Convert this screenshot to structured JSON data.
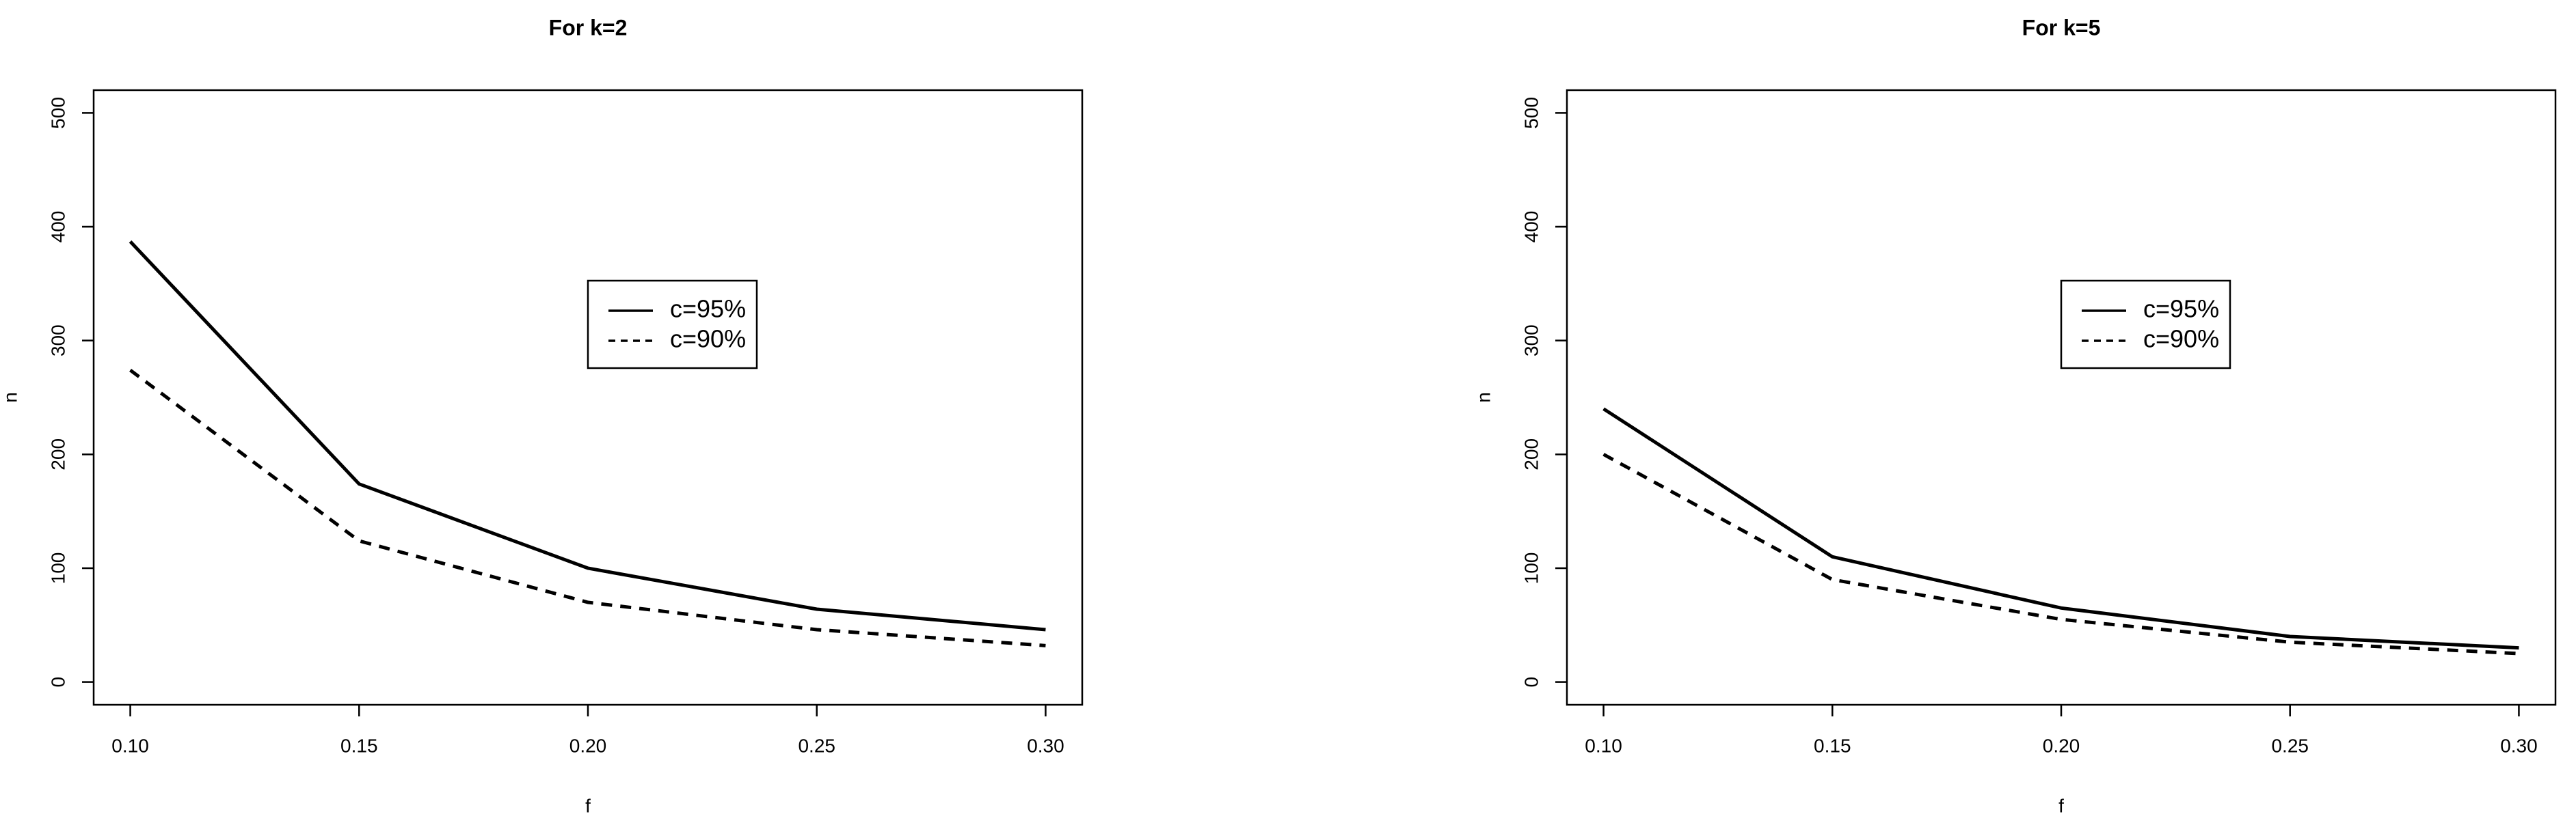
{
  "chart_data": [
    {
      "type": "line",
      "title": "For k=2",
      "x_label": "f",
      "y_label": "n",
      "x": [
        0.1,
        0.15,
        0.2,
        0.25,
        0.3
      ],
      "series": [
        {
          "name": "c=95%",
          "color": "#000000",
          "dash": "solid",
          "values": [
            387,
            174,
            100,
            64,
            46
          ]
        },
        {
          "name": "c=90%",
          "color": "#000000",
          "dash": "dashed",
          "values": [
            274,
            124,
            70,
            46,
            32
          ]
        }
      ],
      "xlim": [
        0.092,
        0.308
      ],
      "xticks": [
        {
          "value": 0.1,
          "label": "0.10"
        },
        {
          "value": 0.15,
          "label": "0.15"
        },
        {
          "value": 0.2,
          "label": "0.20"
        },
        {
          "value": 0.25,
          "label": "0.25"
        },
        {
          "value": 0.3,
          "label": "0.30"
        }
      ],
      "ylim": [
        -20,
        520
      ],
      "yticks": [
        0,
        100,
        200,
        300,
        400,
        500
      ],
      "grid": false,
      "legend": "center"
    },
    {
      "type": "line",
      "title": "For k=5",
      "x_label": "f",
      "y_label": "n",
      "x": [
        0.1,
        0.15,
        0.2,
        0.25,
        0.3
      ],
      "series": [
        {
          "name": "c=95%",
          "color": "#000000",
          "dash": "solid",
          "values": [
            240,
            110,
            65,
            40,
            30
          ]
        },
        {
          "name": "c=90%",
          "color": "#000000",
          "dash": "dashed",
          "values": [
            200,
            90,
            55,
            35,
            25
          ]
        }
      ],
      "xlim": [
        0.092,
        0.308
      ],
      "xticks": [
        {
          "value": 0.1,
          "label": "0.10"
        },
        {
          "value": 0.15,
          "label": "0.15"
        },
        {
          "value": 0.2,
          "label": "0.20"
        },
        {
          "value": 0.25,
          "label": "0.25"
        },
        {
          "value": 0.3,
          "label": "0.30"
        }
      ],
      "ylim": [
        -20,
        520
      ],
      "yticks": [
        0,
        100,
        200,
        300,
        400,
        500
      ],
      "grid": false,
      "legend": "center"
    }
  ]
}
